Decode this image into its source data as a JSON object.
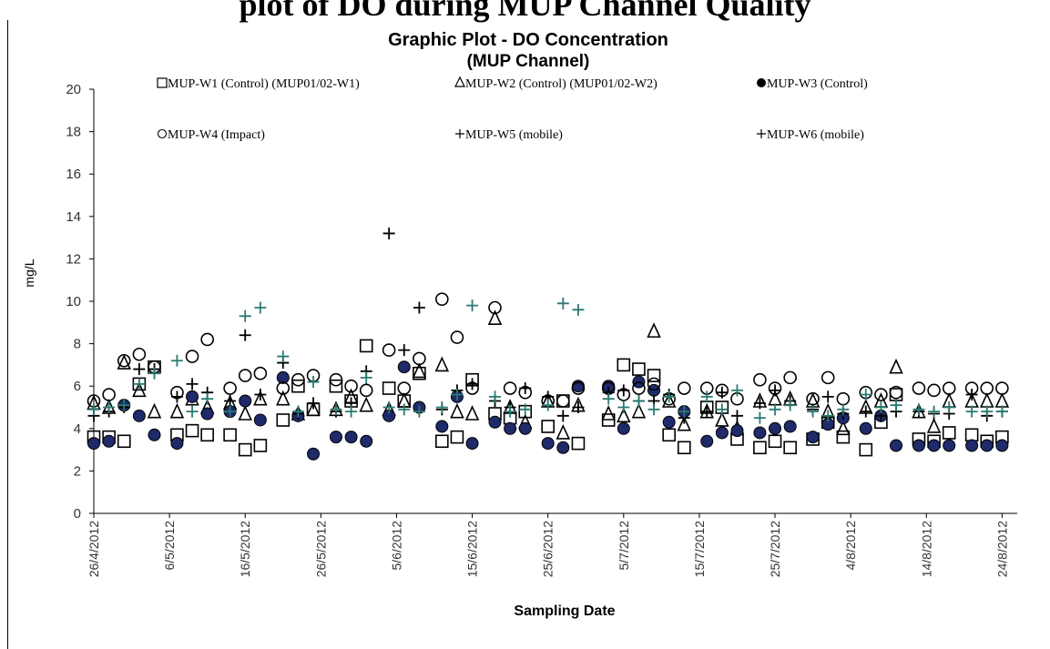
{
  "page_heading": "plot of DO during MUP Channel Quality",
  "chart_data": {
    "type": "scatter",
    "title": "Graphic Plot - DO Concentration",
    "subtitle": "(MUP Channel)",
    "xlabel": "Sampling Date",
    "ylabel": "mg/L",
    "ylim": [
      0,
      20
    ],
    "yticks": [
      0,
      2,
      4,
      6,
      8,
      10,
      12,
      14,
      16,
      18,
      20
    ],
    "xlim": [
      "2012-04-26",
      "2012-08-26"
    ],
    "xticks": [
      "26/4/2012",
      "6/5/2012",
      "16/5/2012",
      "26/5/2012",
      "5/6/2012",
      "15/6/2012",
      "25/6/2012",
      "5/7/2012",
      "15/7/2012",
      "25/7/2012",
      "4/8/2012",
      "14/8/2012",
      "24/8/2012"
    ],
    "grid": false,
    "legend_position": "top",
    "dates": [
      "2012-04-26",
      "2012-04-28",
      "2012-04-30",
      "2012-05-02",
      "2012-05-04",
      "2012-05-07",
      "2012-05-09",
      "2012-05-11",
      "2012-05-14",
      "2012-05-16",
      "2012-05-18",
      "2012-05-21",
      "2012-05-23",
      "2012-05-25",
      "2012-05-28",
      "2012-05-30",
      "2012-06-01",
      "2012-06-04",
      "2012-06-06",
      "2012-06-08",
      "2012-06-11",
      "2012-06-13",
      "2012-06-15",
      "2012-06-18",
      "2012-06-20",
      "2012-06-22",
      "2012-06-25",
      "2012-06-27",
      "2012-06-29",
      "2012-07-03",
      "2012-07-05",
      "2012-07-07",
      "2012-07-09",
      "2012-07-11",
      "2012-07-13",
      "2012-07-16",
      "2012-07-18",
      "2012-07-20",
      "2012-07-23",
      "2012-07-25",
      "2012-07-27",
      "2012-07-30",
      "2012-08-01",
      "2012-08-03",
      "2012-08-06",
      "2012-08-08",
      "2012-08-10",
      "2012-08-13",
      "2012-08-15",
      "2012-08-17",
      "2012-08-20",
      "2012-08-22",
      "2012-08-24"
    ],
    "series": [
      {
        "name": "MUP-W1 (Control) (MUP01/02-W1)",
        "marker": "square-open",
        "color": "#000000",
        "values": [
          3.6,
          3.6,
          3.4,
          6.1,
          6.9,
          3.7,
          3.9,
          3.7,
          3.7,
          3.0,
          3.2,
          4.4,
          6.0,
          4.9,
          6.0,
          5.3,
          7.9,
          5.9,
          5.3,
          6.6,
          3.4,
          3.6,
          6.3,
          4.7,
          4.5,
          4.8,
          4.1,
          5.3,
          3.3,
          4.4,
          7.0,
          6.8,
          6.5,
          3.7,
          3.1,
          5.0,
          5.0,
          3.5,
          3.1,
          3.4,
          3.1,
          3.5,
          4.3,
          3.6,
          3.0,
          4.3,
          5.6,
          3.5,
          3.4,
          3.8,
          3.7,
          3.4,
          3.6
        ]
      },
      {
        "name": "MUP-W2 (Control) (MUP01/02-W2)",
        "marker": "triangle-open",
        "color": "#000000",
        "values": [
          5.2,
          5.0,
          7.1,
          5.8,
          4.8,
          4.8,
          5.4,
          5.0,
          5.2,
          4.7,
          5.4,
          5.4,
          4.7,
          4.9,
          4.9,
          5.5,
          5.1,
          4.9,
          5.3,
          6.7,
          7.0,
          4.8,
          4.7,
          9.2,
          5.0,
          4.3,
          5.3,
          3.8,
          5.1,
          4.7,
          4.6,
          4.8,
          8.6,
          5.3,
          4.2,
          4.8,
          4.4,
          4.0,
          5.3,
          5.4,
          5.4,
          5.3,
          4.8,
          4.0,
          5.0,
          5.3,
          6.9,
          4.8,
          4.1,
          5.3,
          5.3,
          5.3,
          5.3
        ]
      },
      {
        "name": "MUP-W3 (Control)",
        "marker": "circle-filled",
        "color": "#000000",
        "values": [
          3.3,
          3.4,
          5.1,
          4.6,
          3.7,
          3.3,
          5.5,
          4.7,
          4.8,
          5.3,
          4.4,
          6.4,
          4.6,
          2.8,
          3.6,
          3.6,
          3.4,
          4.6,
          6.9,
          5.0,
          4.1,
          5.5,
          3.3,
          4.3,
          4.0,
          4.0,
          3.3,
          3.1,
          6.0,
          6.0,
          4.0,
          6.2,
          5.8,
          4.3,
          4.8,
          3.4,
          3.8,
          3.9,
          3.8,
          4.0,
          4.1,
          3.6,
          4.2,
          4.5,
          4.0,
          4.6,
          3.2,
          3.2,
          3.2,
          3.2,
          3.2,
          3.2,
          3.2
        ]
      },
      {
        "name": "MUP-W4 (Impact)",
        "marker": "circle-open",
        "color": "#000000",
        "values": [
          5.3,
          5.6,
          7.2,
          7.5,
          6.9,
          5.7,
          7.4,
          8.2,
          5.9,
          6.5,
          6.6,
          5.9,
          6.3,
          6.5,
          6.3,
          6.0,
          5.8,
          7.7,
          5.9,
          7.3,
          10.1,
          8.3,
          5.9,
          9.7,
          5.9,
          5.7,
          5.3,
          5.3,
          5.9,
          5.9,
          5.6,
          5.9,
          6.1,
          5.4,
          5.9,
          5.9,
          5.8,
          5.4,
          6.3,
          5.9,
          6.4,
          5.4,
          6.4,
          5.4,
          5.7,
          5.6,
          5.7,
          5.9,
          5.8,
          5.9,
          5.9,
          5.9,
          5.9
        ]
      },
      {
        "name": "MUP-W5 (mobile)",
        "marker": "plus",
        "color": "#000000",
        "values": [
          4.6,
          4.8,
          5.0,
          6.8,
          6.8,
          5.5,
          6.1,
          5.7,
          5.3,
          8.4,
          5.6,
          7.1,
          4.7,
          5.2,
          4.8,
          5.2,
          6.7,
          13.2,
          7.7,
          9.7,
          4.9,
          5.8,
          6.1,
          5.3,
          5.0,
          5.9,
          5.5,
          4.6,
          5.0,
          5.7,
          5.8,
          5.3,
          5.3,
          5.6,
          4.5,
          4.8,
          5.7,
          4.6,
          5.2,
          5.8,
          5.3,
          4.9,
          5.5,
          4.7,
          4.8,
          4.6,
          4.8,
          4.8,
          4.7,
          4.7,
          5.6,
          4.6,
          4.8
        ]
      },
      {
        "name": "MUP-W6 (mobile)",
        "marker": "plus",
        "color": "#2a7a72",
        "values": [
          4.9,
          5.0,
          5.1,
          6.1,
          6.6,
          7.2,
          4.8,
          5.4,
          4.8,
          9.3,
          9.7,
          7.4,
          4.8,
          6.2,
          4.9,
          4.8,
          6.4,
          5.0,
          4.9,
          4.8,
          5.0,
          5.6,
          9.8,
          5.5,
          4.8,
          4.9,
          5.1,
          9.9,
          9.6,
          5.4,
          5.0,
          5.3,
          4.9,
          5.5,
          4.8,
          5.5,
          4.9,
          5.8,
          4.5,
          4.9,
          5.1,
          4.8,
          4.6,
          4.9,
          5.6,
          5.0,
          5.1,
          4.9,
          4.8,
          5.0,
          4.8,
          4.8,
          4.8
        ]
      }
    ]
  },
  "colors": {
    "axis": "#000000",
    "navy_fill": "#1f2a6b",
    "teal": "#2a7a72"
  }
}
